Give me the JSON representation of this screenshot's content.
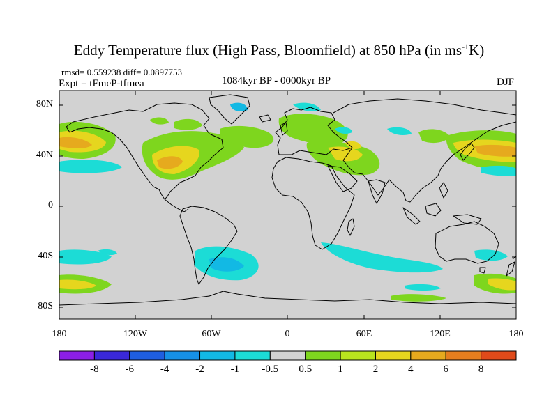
{
  "title_main": "Eddy Temperature flux (High Pass, Bloomfield) at 850 hPa (in ms",
  "title_sup": "-1",
  "title_end": "K)",
  "stats": "rmsd= 0.559238 diff= 0.0897753",
  "experiment": "Expt = tFmeP-tfmea",
  "period": "1084kyr BP - 0000kyr BP",
  "season": "DJF",
  "lat_labels": [
    "80N",
    "40N",
    "0",
    "40S",
    "80S"
  ],
  "lon_labels": [
    "180",
    "120W",
    "60W",
    "0",
    "60E",
    "120E",
    "180"
  ],
  "colorbar": {
    "labels": [
      "-8",
      "-6",
      "-4",
      "-2",
      "-1",
      "-0.5",
      "0.5",
      "1",
      "2",
      "4",
      "6",
      "8"
    ],
    "colors": [
      "#8c1fe6",
      "#3a28d8",
      "#1f5ee0",
      "#1690e6",
      "#12b9e4",
      "#1cdcd6",
      "#d2d2d2",
      "#7ed61e",
      "#b9e41e",
      "#e6d61e",
      "#e6aa1e",
      "#e67e1e",
      "#e04a1a"
    ]
  },
  "map": {
    "background": "#d2d2d2",
    "land_outline": "#000000"
  }
}
